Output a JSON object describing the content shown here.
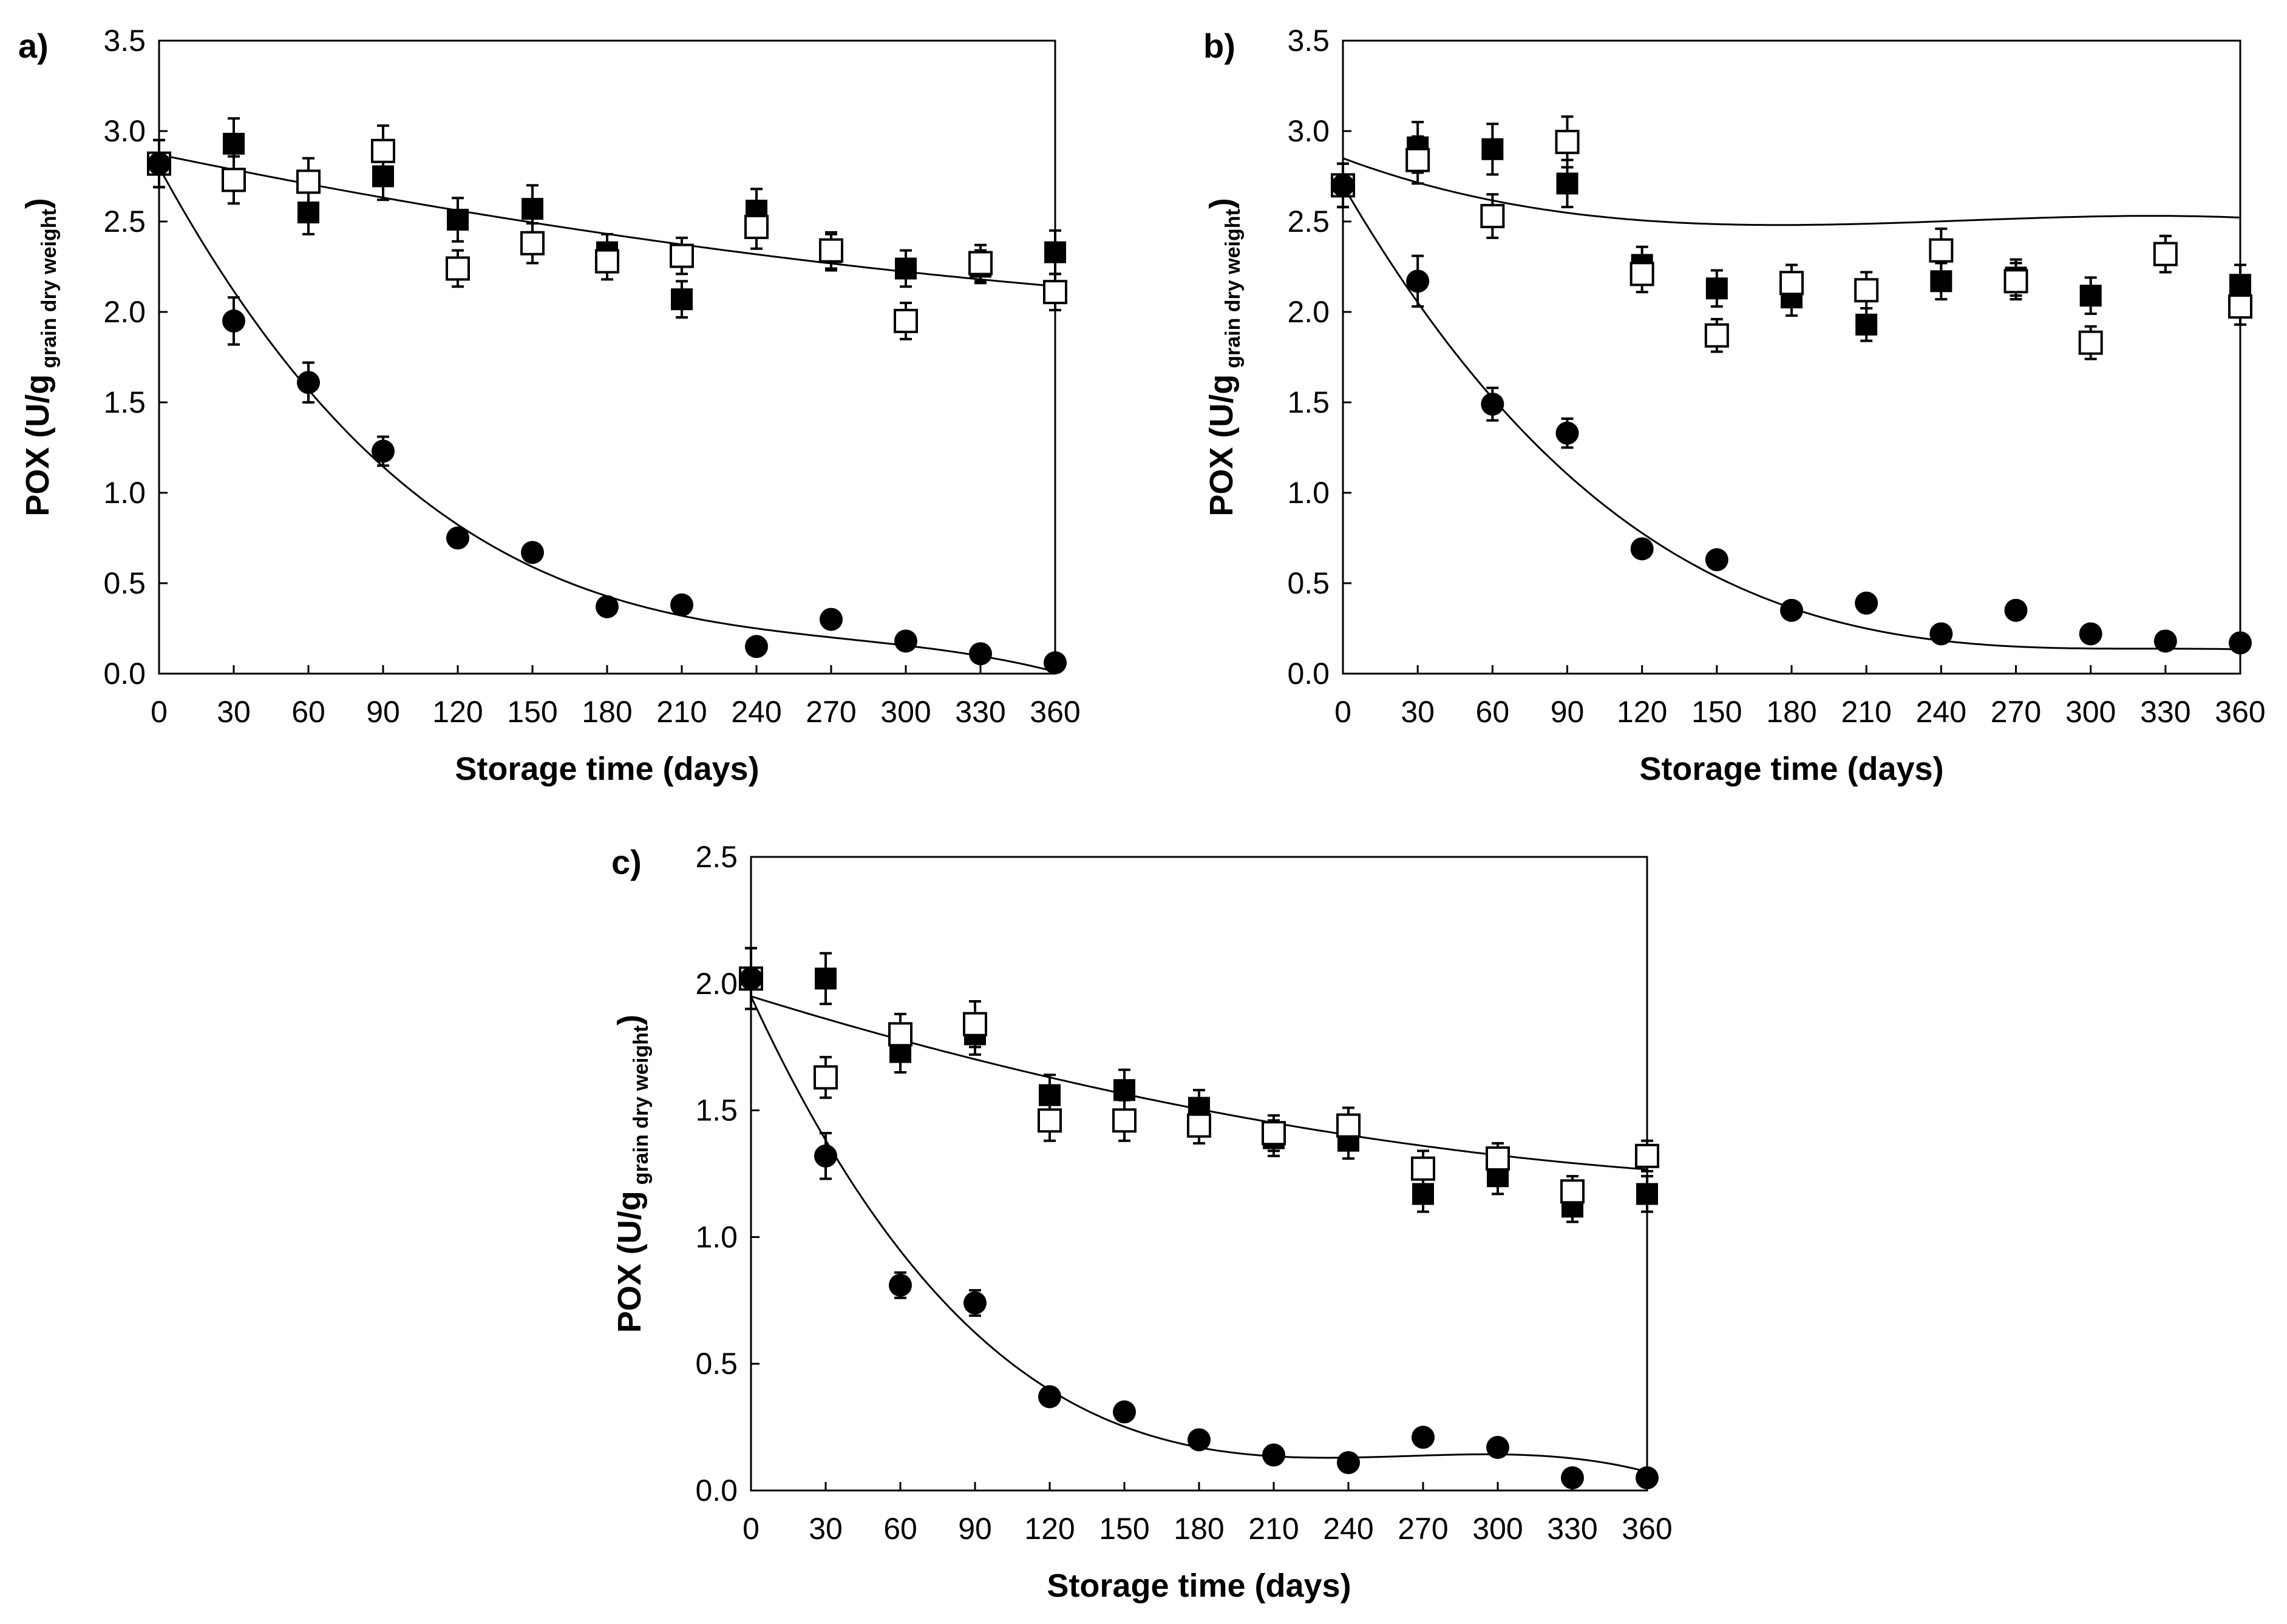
{
  "chart_data": [
    {
      "panel_label": "a)",
      "type": "scatter",
      "xlabel": "Storage time (days)",
      "ylabel_main": "POX (U/g",
      "ylabel_sub": "grain dry weight",
      "ylabel_close": ")",
      "xlim": [
        0,
        360
      ],
      "ylim": [
        0,
        3.5
      ],
      "x_ticks": [
        "0",
        "30",
        "60",
        "90",
        "120",
        "150",
        "180",
        "210",
        "240",
        "270",
        "300",
        "330",
        "360"
      ],
      "y_ticks": [
        "0.0",
        "0.5",
        "1.0",
        "1.5",
        "2.0",
        "2.5",
        "3.0",
        "3.5"
      ],
      "series": [
        {
          "name": "filled-square",
          "marker": "square-filled",
          "x": [
            0,
            30,
            60,
            90,
            120,
            150,
            180,
            210,
            240,
            270,
            300,
            330,
            360
          ],
          "values": [
            2.82,
            2.93,
            2.55,
            2.75,
            2.51,
            2.57,
            2.33,
            2.07,
            2.56,
            2.33,
            2.24,
            2.25,
            2.33
          ],
          "error": [
            0.13,
            0.14,
            0.12,
            0.13,
            0.12,
            0.13,
            0.1,
            0.1,
            0.12,
            0.1,
            0.1,
            0.09,
            0.12
          ]
        },
        {
          "name": "open-square",
          "marker": "square-open",
          "x": [
            0,
            30,
            60,
            90,
            120,
            150,
            180,
            210,
            240,
            270,
            300,
            330,
            360
          ],
          "values": [
            2.82,
            2.73,
            2.72,
            2.89,
            2.24,
            2.38,
            2.28,
            2.31,
            2.47,
            2.34,
            1.95,
            2.27,
            2.11
          ],
          "error": [
            0.13,
            0.13,
            0.13,
            0.14,
            0.1,
            0.11,
            0.1,
            0.1,
            0.12,
            0.1,
            0.1,
            0.1,
            0.1
          ]
        },
        {
          "name": "filled-circle",
          "marker": "circle-filled",
          "x": [
            0,
            30,
            60,
            90,
            120,
            150,
            180,
            210,
            240,
            270,
            300,
            330,
            360
          ],
          "values": [
            2.82,
            1.95,
            1.61,
            1.23,
            0.75,
            0.67,
            0.37,
            0.38,
            0.15,
            0.3,
            0.18,
            0.11,
            0.06
          ],
          "error": [
            0.13,
            0.13,
            0.11,
            0.08,
            0,
            0,
            0,
            0,
            0,
            0,
            0,
            0,
            0
          ]
        }
      ],
      "fits": [
        {
          "name": "fit-squares",
          "coef": [
            2.87,
            -0.00285,
            2.3e-06
          ]
        },
        {
          "name": "fit-circles",
          "coef": [
            2.8,
            -0.02528,
            8.578e-05,
            -1.03e-07
          ]
        }
      ]
    },
    {
      "panel_label": "b)",
      "type": "scatter",
      "xlabel": "Storage time (days)",
      "ylabel_main": "POX (U/g",
      "ylabel_sub": "grain dry weight",
      "ylabel_close": ")",
      "xlim": [
        0,
        360
      ],
      "ylim": [
        0,
        3.5
      ],
      "x_ticks": [
        "0",
        "30",
        "60",
        "90",
        "120",
        "150",
        "180",
        "210",
        "240",
        "270",
        "300",
        "330",
        "360"
      ],
      "y_ticks": [
        "0.0",
        "0.5",
        "1.0",
        "1.5",
        "2.0",
        "2.5",
        "3.0",
        "3.5"
      ],
      "series": [
        {
          "name": "filled-square",
          "marker": "square-filled",
          "x": [
            0,
            30,
            60,
            90,
            120,
            150,
            180,
            210,
            240,
            270,
            300,
            330,
            360
          ],
          "values": [
            2.7,
            2.91,
            2.9,
            2.71,
            2.26,
            2.13,
            2.08,
            1.93,
            2.17,
            2.19,
            2.09,
            2.32,
            2.15
          ],
          "error": [
            0.12,
            0.14,
            0.14,
            0.13,
            0.1,
            0.1,
            0.1,
            0.09,
            0.1,
            0.1,
            0.1,
            0.1,
            0.11
          ]
        },
        {
          "name": "open-square",
          "marker": "square-open",
          "x": [
            0,
            30,
            60,
            90,
            120,
            150,
            180,
            210,
            240,
            270,
            300,
            330,
            360
          ],
          "values": [
            2.7,
            2.84,
            2.53,
            2.94,
            2.21,
            1.87,
            2.16,
            2.12,
            2.34,
            2.17,
            1.83,
            2.32,
            2.03
          ],
          "error": [
            0.12,
            0.13,
            0.12,
            0.14,
            0.1,
            0.09,
            0.1,
            0.1,
            0.12,
            0.1,
            0.09,
            0.1,
            0.1
          ]
        },
        {
          "name": "filled-circle",
          "marker": "circle-filled",
          "x": [
            0,
            30,
            60,
            90,
            120,
            150,
            180,
            210,
            240,
            270,
            300,
            330,
            360
          ],
          "values": [
            2.7,
            2.17,
            1.49,
            1.33,
            0.69,
            0.63,
            0.35,
            0.39,
            0.22,
            0.35,
            0.22,
            0.18,
            0.17
          ],
          "error": [
            0.12,
            0.14,
            0.09,
            0.08,
            0,
            0,
            0,
            0,
            0,
            0,
            0,
            0,
            0
          ]
        }
      ],
      "fits": [
        {
          "name": "fit-squares",
          "coef": [
            2.85,
            -0.00514,
            2.258e-05,
            -3.01e-08
          ]
        },
        {
          "name": "fit-circles",
          "coef": [
            2.7,
            -0.02372,
            7.32e-05,
            -7.53e-08
          ]
        }
      ]
    },
    {
      "panel_label": "c)",
      "type": "scatter",
      "xlabel": "Storage time (days)",
      "ylabel_main": "POX (U/g",
      "ylabel_sub": "grain dry weight",
      "ylabel_close": ")",
      "xlim": [
        0,
        360
      ],
      "ylim": [
        0,
        2.5
      ],
      "x_ticks": [
        "0",
        "30",
        "60",
        "90",
        "120",
        "150",
        "180",
        "210",
        "240",
        "270",
        "300",
        "330",
        "360"
      ],
      "y_ticks": [
        "0.0",
        "0.5",
        "1.0",
        "1.5",
        "2.0",
        "2.5"
      ],
      "series": [
        {
          "name": "filled-square",
          "marker": "square-filled",
          "x": [
            0,
            30,
            60,
            90,
            120,
            150,
            180,
            210,
            240,
            270,
            300,
            330,
            360
          ],
          "values": [
            2.02,
            2.02,
            1.73,
            1.8,
            1.56,
            1.58,
            1.51,
            1.39,
            1.38,
            1.17,
            1.24,
            1.12,
            1.17
          ],
          "error": [
            0.12,
            0.1,
            0.08,
            0.08,
            0.08,
            0.08,
            0.07,
            0.07,
            0.07,
            0.07,
            0.07,
            0.06,
            0.07
          ]
        },
        {
          "name": "open-square",
          "marker": "square-open",
          "x": [
            0,
            30,
            60,
            90,
            120,
            150,
            180,
            210,
            240,
            270,
            300,
            330,
            360
          ],
          "values": [
            2.02,
            1.63,
            1.8,
            1.84,
            1.46,
            1.46,
            1.44,
            1.41,
            1.44,
            1.27,
            1.31,
            1.18,
            1.32
          ],
          "error": [
            0.12,
            0.08,
            0.08,
            0.09,
            0.08,
            0.08,
            0.07,
            0.07,
            0.07,
            0.07,
            0.06,
            0.06,
            0.06
          ]
        },
        {
          "name": "filled-circle",
          "marker": "circle-filled",
          "x": [
            0,
            30,
            60,
            90,
            120,
            150,
            180,
            210,
            240,
            270,
            300,
            330,
            360
          ],
          "values": [
            2.02,
            1.32,
            0.81,
            0.74,
            0.37,
            0.31,
            0.2,
            0.14,
            0.11,
            0.21,
            0.17,
            0.05,
            0.05
          ],
          "error": [
            0.12,
            0.09,
            0.05,
            0.05,
            0,
            0,
            0,
            0,
            0,
            0,
            0,
            0,
            0
          ]
        }
      ],
      "fits": [
        {
          "name": "fit-squares",
          "coef": [
            1.95,
            -0.00305,
            3.2e-06
          ]
        },
        {
          "name": "fit-circles",
          "coef": [
            1.95,
            -0.02128,
            8.193e-05,
            -1.036e-07
          ]
        }
      ]
    }
  ]
}
